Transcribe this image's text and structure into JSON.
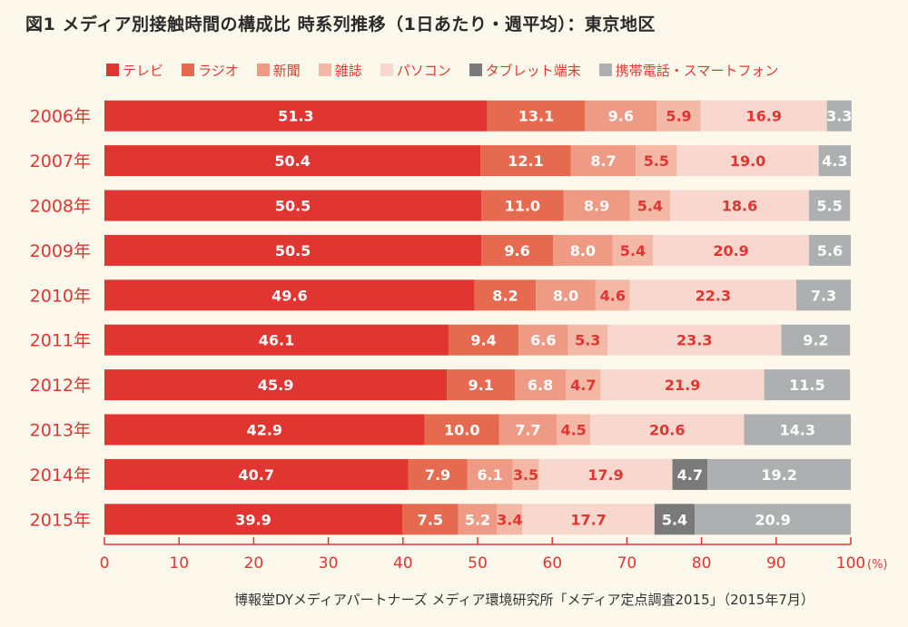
{
  "title": "図1 メディア別接触時間の構成比 時系列推移（1日あたり・週平均）：東京地区",
  "source": "博報堂DYメディアパートナーズ メディア環境研究所「メディア定点調査2015」（2015年7月）",
  "chart_data": {
    "type": "bar",
    "orientation": "horizontal",
    "stacked": true,
    "title": "図1 メディア別接触時間の構成比 時系列推移（1日あたり・週平均）：東京地区",
    "categories": [
      "2006年",
      "2007年",
      "2008年",
      "2009年",
      "2010年",
      "2011年",
      "2012年",
      "2013年",
      "2014年",
      "2015年"
    ],
    "xlim": [
      0,
      100
    ],
    "x_ticks": [
      "0",
      "10",
      "20",
      "30",
      "40",
      "50",
      "60",
      "70",
      "80",
      "90",
      "100"
    ],
    "x_unit": "(%)",
    "legend_position": "top",
    "series": [
      {
        "name": "テレビ",
        "color": "#e03530",
        "label_color": "#ffffff",
        "values": [
          51.3,
          50.4,
          50.5,
          50.5,
          49.6,
          46.1,
          45.9,
          42.9,
          40.7,
          39.9
        ]
      },
      {
        "name": "ラジオ",
        "color": "#e66a50",
        "label_color": "#ffffff",
        "values": [
          13.1,
          12.1,
          11.0,
          9.6,
          8.2,
          9.4,
          9.1,
          10.0,
          7.9,
          7.5
        ]
      },
      {
        "name": "新聞",
        "color": "#ee9a84",
        "label_color": "#ffffff",
        "values": [
          9.6,
          8.7,
          8.9,
          8.0,
          8.0,
          6.6,
          6.8,
          7.7,
          6.1,
          5.2
        ]
      },
      {
        "name": "雑誌",
        "color": "#f4b8a6",
        "label_color": "#e03530",
        "values": [
          5.9,
          5.5,
          5.4,
          5.4,
          4.6,
          5.3,
          4.7,
          4.5,
          3.5,
          3.4
        ]
      },
      {
        "name": "パソコン",
        "color": "#f8d8ce",
        "label_color": "#e03530",
        "values": [
          16.9,
          19.0,
          18.6,
          20.9,
          22.3,
          23.3,
          21.9,
          20.6,
          17.9,
          17.7
        ]
      },
      {
        "name": "タブレット端末",
        "color": "#7a7a7a",
        "label_color": "#ffffff",
        "values": [
          null,
          null,
          null,
          null,
          null,
          null,
          null,
          null,
          4.7,
          5.4
        ]
      },
      {
        "name": "携帯電話・スマートフォン",
        "color": "#aeafb1",
        "label_color": "#ffffff",
        "values": [
          3.3,
          4.3,
          5.5,
          5.6,
          7.3,
          9.2,
          11.5,
          14.3,
          19.2,
          20.9
        ]
      }
    ]
  }
}
